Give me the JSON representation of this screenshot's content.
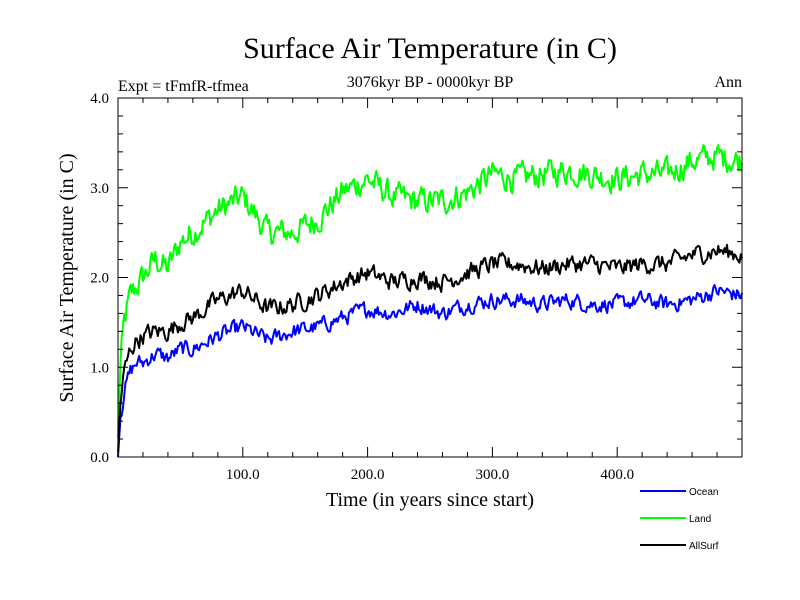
{
  "chart_data": {
    "type": "line",
    "title": "Surface Air Temperature (in C)",
    "subtitle": "3076kyr BP - 0000kyr BP",
    "experiment_label": "Expt = tFmfR-tfmea",
    "period_label": "Ann",
    "xlabel": "Time (in years since start)",
    "ylabel": "Surface Air Temperature (in C)",
    "xlim": [
      0,
      500
    ],
    "ylim": [
      0,
      4.0
    ],
    "x_ticks": [
      {
        "value": 100,
        "label": "100.0"
      },
      {
        "value": 200,
        "label": "200.0"
      },
      {
        "value": 300,
        "label": "300.0"
      },
      {
        "value": 400,
        "label": "400.0"
      }
    ],
    "y_ticks": [
      {
        "value": 0,
        "label": "0.0"
      },
      {
        "value": 1,
        "label": "1.0"
      },
      {
        "value": 2,
        "label": "2.0"
      },
      {
        "value": 3,
        "label": "3.0"
      },
      {
        "value": 4,
        "label": "4.0"
      }
    ],
    "x": [
      0,
      2,
      5,
      10,
      15,
      20,
      30,
      40,
      50,
      60,
      80,
      100,
      120,
      140,
      160,
      180,
      200,
      220,
      240,
      260,
      280,
      300,
      320,
      340,
      360,
      380,
      400,
      420,
      440,
      460,
      480,
      500
    ],
    "series": [
      {
        "name": "Ocean",
        "color": "#0000ff",
        "values": [
          0.0,
          0.45,
          0.75,
          0.95,
          1.05,
          1.05,
          1.15,
          1.1,
          1.2,
          1.2,
          1.35,
          1.45,
          1.3,
          1.4,
          1.45,
          1.55,
          1.65,
          1.6,
          1.7,
          1.6,
          1.7,
          1.75,
          1.75,
          1.7,
          1.75,
          1.7,
          1.7,
          1.75,
          1.7,
          1.75,
          1.85,
          1.8
        ]
      },
      {
        "name": "Land",
        "color": "#00ff00",
        "values": [
          0.2,
          1.05,
          1.5,
          1.8,
          1.9,
          2.0,
          2.2,
          2.1,
          2.4,
          2.5,
          2.75,
          2.9,
          2.5,
          2.5,
          2.65,
          2.95,
          3.1,
          2.9,
          2.85,
          2.85,
          2.95,
          3.15,
          3.1,
          3.15,
          3.2,
          3.15,
          3.1,
          3.15,
          3.15,
          3.3,
          3.35,
          3.3
        ]
      },
      {
        "name": "AllSurf",
        "color": "#000000",
        "values": [
          0.05,
          0.6,
          0.95,
          1.2,
          1.3,
          1.35,
          1.4,
          1.4,
          1.5,
          1.55,
          1.75,
          1.85,
          1.65,
          1.7,
          1.8,
          1.95,
          2.05,
          1.95,
          2.0,
          1.95,
          2.05,
          2.15,
          2.15,
          2.1,
          2.15,
          2.15,
          2.1,
          2.15,
          2.15,
          2.25,
          2.3,
          2.25
        ]
      }
    ]
  }
}
